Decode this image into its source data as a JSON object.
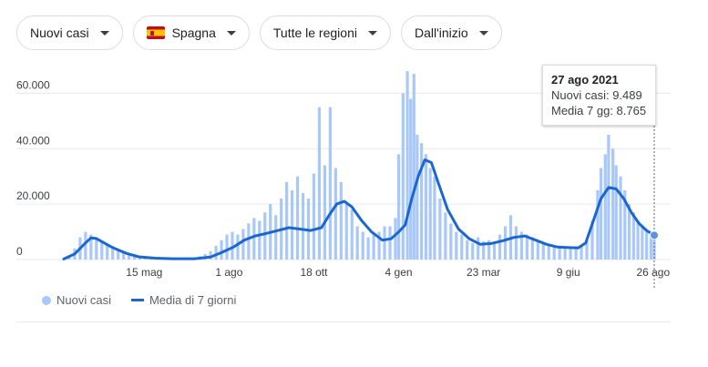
{
  "filters": [
    {
      "label": "Nuovi casi"
    },
    {
      "label": "Spagna"
    },
    {
      "label": "Tutte le regioni"
    },
    {
      "label": "Dall'inizio"
    }
  ],
  "tooltip": {
    "date": "27 ago 2021",
    "cases_label": "Nuovi casi: 9.489",
    "avg_label": "Media 7 gg: 8.765"
  },
  "legend": {
    "bars_label": "Nuovi casi",
    "line_label": "Media di 7 giorni"
  },
  "colors": {
    "bars": "#a8c7fa",
    "line": "#1a67d2",
    "grid": "#e8eaed",
    "cursor": "#5f6368"
  },
  "chart_data": {
    "type": "bar",
    "x_range": [
      "2020-03-02",
      "2021-08-27"
    ],
    "ylim": [
      0,
      70000
    ],
    "yticks": [
      0,
      20000,
      40000,
      60000
    ],
    "ytick_labels": [
      "0",
      "20.000",
      "40.000",
      "60.000"
    ],
    "xticks": [
      {
        "date": "2020-05-15",
        "label": "15 mag"
      },
      {
        "date": "2020-08-01",
        "label": "1 ago"
      },
      {
        "date": "2020-10-18",
        "label": "18 ott"
      },
      {
        "date": "2021-01-04",
        "label": "4 gen"
      },
      {
        "date": "2021-03-23",
        "label": "23 mar"
      },
      {
        "date": "2021-06-09",
        "label": "9 giu"
      },
      {
        "date": "2021-08-26",
        "label": "26 ago"
      }
    ],
    "grid": true,
    "legend_position": "bottom-left",
    "series": [
      {
        "name": "Nuovi casi",
        "kind": "bar",
        "x": [
          "2020-03-02",
          "2020-03-07",
          "2020-03-12",
          "2020-03-17",
          "2020-03-22",
          "2020-03-27",
          "2020-04-01",
          "2020-04-06",
          "2020-04-11",
          "2020-04-16",
          "2020-04-21",
          "2020-04-26",
          "2020-05-01",
          "2020-05-06",
          "2020-05-11",
          "2020-05-16",
          "2020-05-21",
          "2020-05-26",
          "2020-05-31",
          "2020-06-05",
          "2020-06-10",
          "2020-06-15",
          "2020-06-20",
          "2020-06-25",
          "2020-06-30",
          "2020-07-05",
          "2020-07-10",
          "2020-07-15",
          "2020-07-20",
          "2020-07-25",
          "2020-07-30",
          "2020-08-04",
          "2020-08-09",
          "2020-08-14",
          "2020-08-19",
          "2020-08-24",
          "2020-08-29",
          "2020-09-03",
          "2020-09-08",
          "2020-09-13",
          "2020-09-18",
          "2020-09-23",
          "2020-09-28",
          "2020-10-03",
          "2020-10-08",
          "2020-10-13",
          "2020-10-18",
          "2020-10-23",
          "2020-10-28",
          "2020-11-02",
          "2020-11-07",
          "2020-11-12",
          "2020-11-17",
          "2020-11-22",
          "2020-11-27",
          "2020-12-02",
          "2020-12-07",
          "2020-12-12",
          "2020-12-17",
          "2020-12-22",
          "2020-12-27",
          "2021-01-01",
          "2021-01-04",
          "2021-01-08",
          "2021-01-12",
          "2021-01-15",
          "2021-01-18",
          "2021-01-21",
          "2021-01-25",
          "2021-01-29",
          "2021-02-02",
          "2021-02-06",
          "2021-02-11",
          "2021-02-16",
          "2021-02-21",
          "2021-02-26",
          "2021-03-03",
          "2021-03-08",
          "2021-03-13",
          "2021-03-18",
          "2021-03-23",
          "2021-03-28",
          "2021-04-02",
          "2021-04-07",
          "2021-04-12",
          "2021-04-17",
          "2021-04-22",
          "2021-04-27",
          "2021-05-02",
          "2021-05-07",
          "2021-05-12",
          "2021-05-17",
          "2021-05-22",
          "2021-05-27",
          "2021-06-01",
          "2021-06-06",
          "2021-06-11",
          "2021-06-16",
          "2021-06-21",
          "2021-06-26",
          "2021-07-01",
          "2021-07-06",
          "2021-07-09",
          "2021-07-13",
          "2021-07-16",
          "2021-07-20",
          "2021-07-23",
          "2021-07-27",
          "2021-07-31",
          "2021-08-04",
          "2021-08-08",
          "2021-08-12",
          "2021-08-16",
          "2021-08-20",
          "2021-08-24",
          "2021-08-27"
        ],
        "values": [
          300,
          1500,
          4000,
          8000,
          10000,
          9000,
          7500,
          6500,
          5500,
          4500,
          3500,
          2500,
          1800,
          1200,
          800,
          700,
          600,
          500,
          400,
          400,
          400,
          400,
          450,
          500,
          700,
          1200,
          2000,
          3000,
          5000,
          7000,
          9000,
          10000,
          9000,
          11000,
          13000,
          15000,
          14000,
          17000,
          20000,
          16000,
          22000,
          28000,
          25000,
          30000,
          24000,
          22000,
          31000,
          55000,
          34000,
          55000,
          33000,
          28000,
          20000,
          18000,
          12000,
          10000,
          8000,
          9000,
          10000,
          12000,
          12000,
          15000,
          38000,
          60000,
          68000,
          58000,
          67000,
          45000,
          42000,
          38000,
          33000,
          30000,
          22000,
          17000,
          13000,
          10000,
          9000,
          7000,
          6000,
          8000,
          6500,
          7000,
          6000,
          9000,
          12000,
          16000,
          12000,
          10000,
          9000,
          8000,
          6500,
          6000,
          5500,
          5000,
          5000,
          4500,
          4500,
          4800,
          5000,
          7000,
          14000,
          25000,
          33000,
          38000,
          45000,
          40000,
          34000,
          30000,
          25000,
          20000,
          17000,
          14000,
          12000,
          10500,
          9500,
          9489
        ]
      },
      {
        "name": "Media di 7 giorni",
        "kind": "line",
        "x": [
          "2020-03-02",
          "2020-03-12",
          "2020-03-22",
          "2020-03-27",
          "2020-04-01",
          "2020-04-08",
          "2020-04-15",
          "2020-04-22",
          "2020-04-29",
          "2020-05-10",
          "2020-05-25",
          "2020-06-10",
          "2020-06-30",
          "2020-07-15",
          "2020-07-25",
          "2020-08-05",
          "2020-08-15",
          "2020-08-25",
          "2020-09-05",
          "2020-09-15",
          "2020-09-25",
          "2020-10-05",
          "2020-10-15",
          "2020-10-25",
          "2020-11-01",
          "2020-11-08",
          "2020-11-15",
          "2020-11-22",
          "2020-12-01",
          "2020-12-10",
          "2020-12-20",
          "2020-12-28",
          "2021-01-04",
          "2021-01-10",
          "2021-01-16",
          "2021-01-22",
          "2021-01-28",
          "2021-02-03",
          "2021-02-10",
          "2021-02-18",
          "2021-02-28",
          "2021-03-10",
          "2021-03-20",
          "2021-03-30",
          "2021-04-10",
          "2021-04-20",
          "2021-04-30",
          "2021-05-10",
          "2021-05-20",
          "2021-05-30",
          "2021-06-10",
          "2021-06-18",
          "2021-06-25",
          "2021-07-02",
          "2021-07-09",
          "2021-07-16",
          "2021-07-23",
          "2021-07-30",
          "2021-08-06",
          "2021-08-13",
          "2021-08-20",
          "2021-08-27"
        ],
        "values": [
          200,
          2000,
          6000,
          7800,
          7600,
          6000,
          4500,
          3300,
          2200,
          1000,
          500,
          300,
          300,
          900,
          2500,
          4500,
          7000,
          8500,
          9500,
          10500,
          11500,
          11000,
          10500,
          11500,
          16000,
          20000,
          21000,
          19000,
          14000,
          10000,
          7000,
          7500,
          10000,
          12500,
          22000,
          30000,
          36000,
          35000,
          27000,
          18000,
          11000,
          7500,
          5500,
          5800,
          6800,
          8000,
          8500,
          7000,
          5500,
          4500,
          4300,
          4200,
          6000,
          14000,
          22000,
          26000,
          25500,
          22000,
          17000,
          13000,
          10500,
          8765
        ]
      }
    ]
  }
}
